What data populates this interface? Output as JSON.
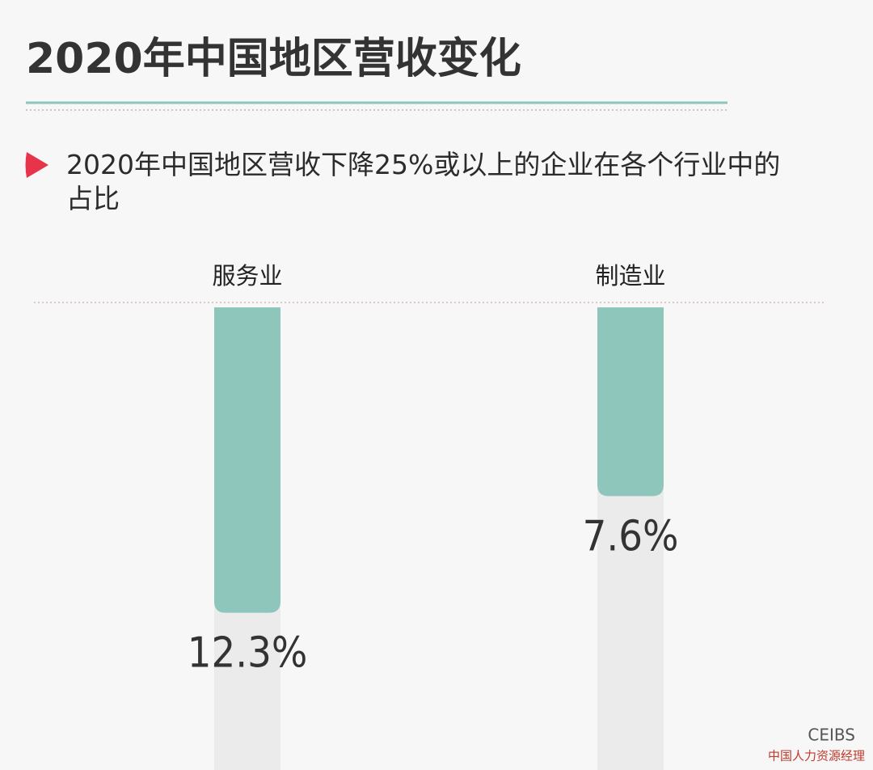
{
  "chart_data": {
    "type": "bar",
    "title": "2020年中国地区营收变化",
    "subtitle": "2020年中国地区营收下降25%或以上的企业在各个行业中的占比",
    "categories": [
      "服务业",
      "制造业"
    ],
    "values": [
      12.3,
      7.6
    ],
    "value_labels": [
      "12.3%",
      "7.6%"
    ],
    "color": "#8fc6bc",
    "logo": "CEIBS",
    "watermark": "中国人力资源经理"
  }
}
